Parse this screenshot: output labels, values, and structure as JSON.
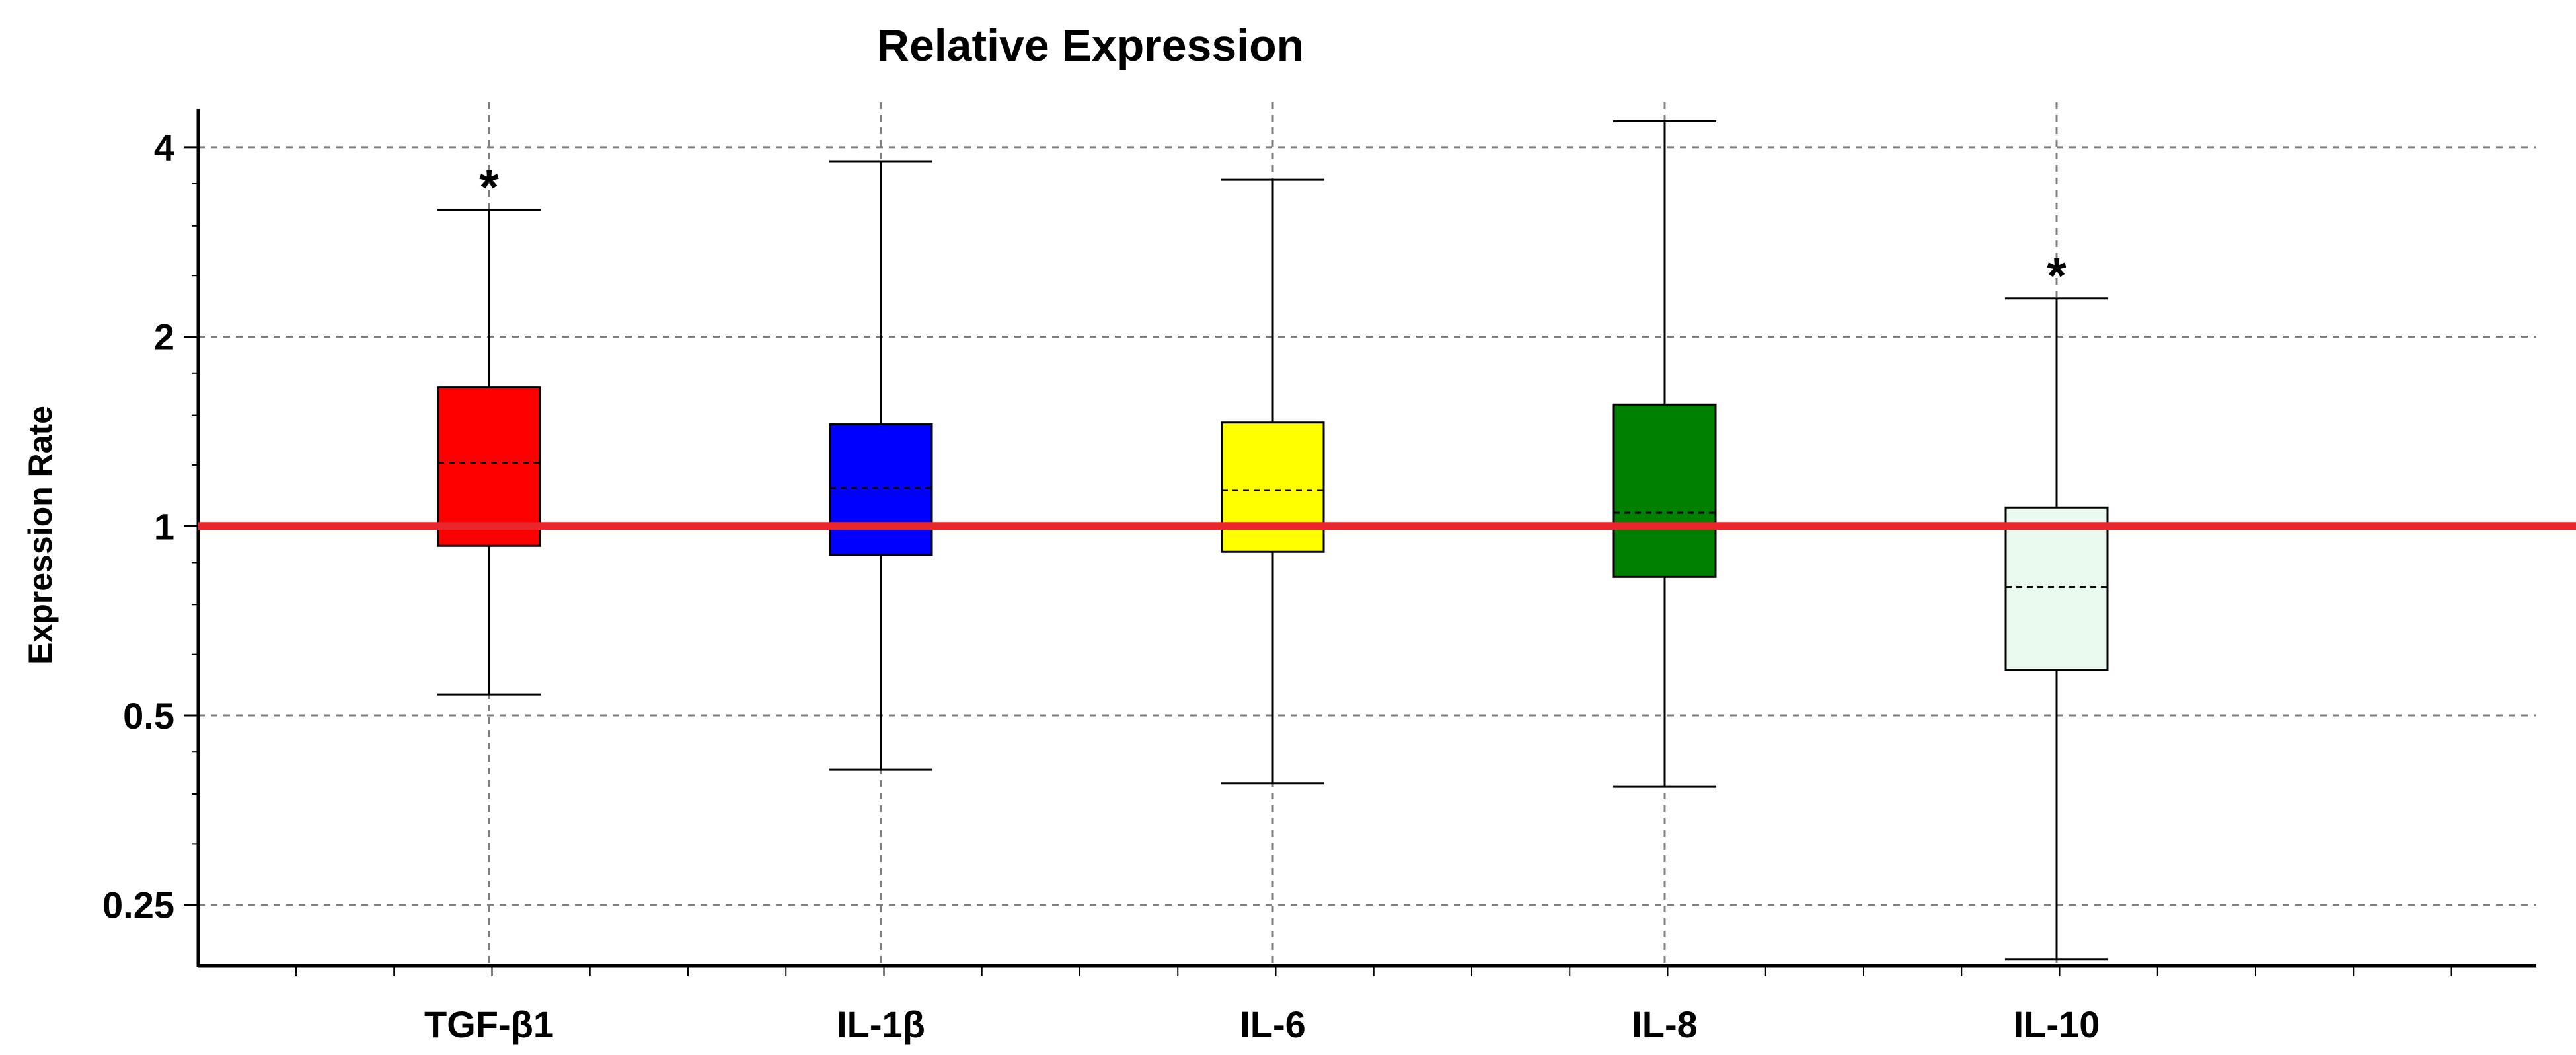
{
  "chart_data": {
    "type": "box",
    "title": "Relative Expression",
    "xlabel": "",
    "ylabel": "Expression Rate",
    "yscale": "log2",
    "ylim": [
      0.2,
      4.6
    ],
    "yticks": [
      0.25,
      0.5,
      1,
      2,
      4
    ],
    "ytick_labels": [
      "0.25",
      "0.5",
      "1",
      "2",
      "4"
    ],
    "grid": true,
    "reference_line": {
      "y": 1,
      "color": "#e8262c"
    },
    "categories": [
      "TGF-β1",
      "IL-1β",
      "IL-6",
      "IL-8",
      "IL-10"
    ],
    "boxes": [
      {
        "name": "TGF-β1",
        "whisker_low": 0.54,
        "q1": 0.93,
        "median": 1.26,
        "q3": 1.66,
        "whisker_high": 3.18,
        "color": "#ff0000",
        "annotation": "*"
      },
      {
        "name": "IL-1β",
        "whisker_low": 0.41,
        "q1": 0.9,
        "median": 1.15,
        "q3": 1.45,
        "whisker_high": 3.8,
        "color": "#0000ff",
        "annotation": ""
      },
      {
        "name": "IL-6",
        "whisker_low": 0.39,
        "q1": 0.91,
        "median": 1.14,
        "q3": 1.46,
        "whisker_high": 3.55,
        "color": "#ffff00",
        "annotation": ""
      },
      {
        "name": "IL-8",
        "whisker_low": 0.385,
        "q1": 0.83,
        "median": 1.05,
        "q3": 1.56,
        "whisker_high": 4.4,
        "color": "#008000",
        "annotation": ""
      },
      {
        "name": "IL-10",
        "whisker_low": 0.205,
        "q1": 0.59,
        "median": 0.8,
        "q3": 1.07,
        "whisker_high": 2.3,
        "color": "#eafaee",
        "annotation": "*"
      }
    ]
  }
}
